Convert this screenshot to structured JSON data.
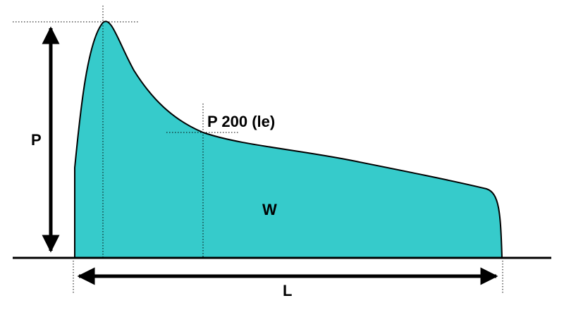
{
  "diagram": {
    "labels": {
      "p": "P",
      "p200": "P 200 (le)",
      "w": "W",
      "l": "L"
    },
    "colors": {
      "fill": "#36CBCB",
      "stroke": "#000000",
      "background": "#FFFFFF"
    }
  }
}
